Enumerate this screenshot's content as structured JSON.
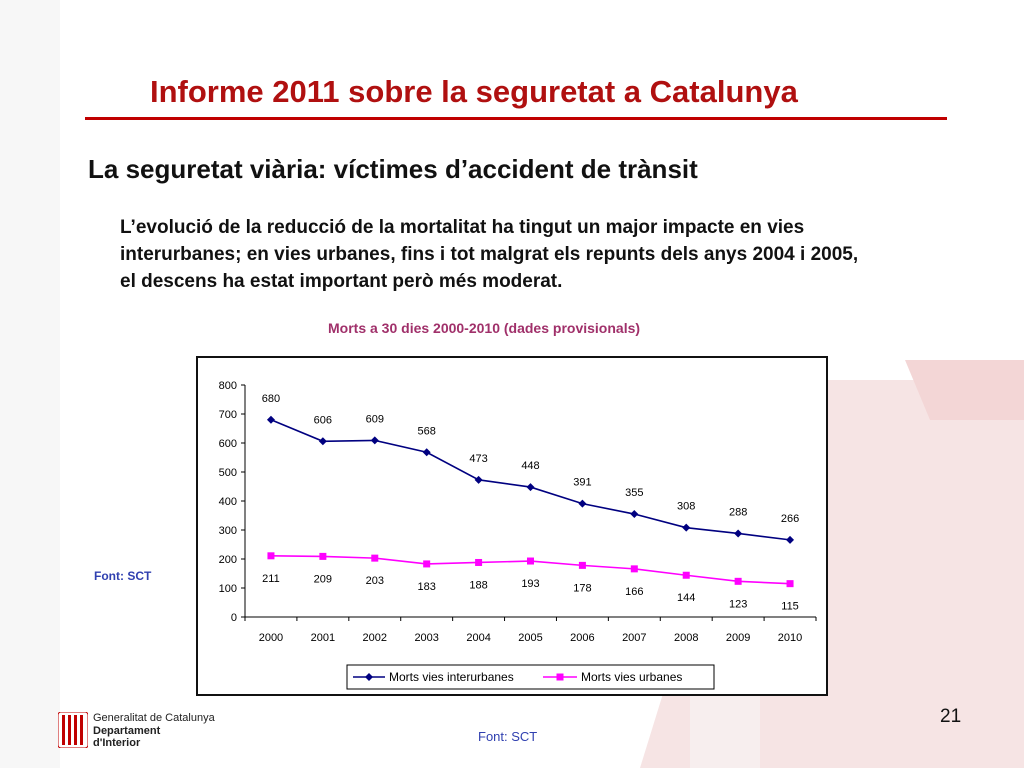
{
  "header": {
    "title": "Informe 2011 sobre la seguretat a Catalunya",
    "subtitle": "La seguretat viària: víctimes d’accident de trànsit",
    "body_text": "L’evolució de la reducció de la mortalitat ha tingut un major impacte en vies interurbanes; en vies urbanes, fins i tot malgrat els repunts dels anys 2004 i 2005, el descens ha estat important però més moderat."
  },
  "source_left": "Font: SCT",
  "source_bottom": "Font: SCT",
  "page_number": "21",
  "logo": {
    "line1": "Generalitat de Catalunya",
    "line2": "Departament",
    "line3": "d'Interior"
  },
  "colors": {
    "title": "#b01010",
    "interurban": "#000080",
    "urban": "#ff00ff"
  },
  "chart_data": {
    "type": "line",
    "title": "Morts a 30 dies 2000-2010 (dades provisionals)",
    "categories": [
      "2000",
      "2001",
      "2002",
      "2003",
      "2004",
      "2005",
      "2006",
      "2007",
      "2008",
      "2009",
      "2010"
    ],
    "series": [
      {
        "name": "Morts vies interurbanes",
        "values": [
          680,
          606,
          609,
          568,
          473,
          448,
          391,
          355,
          308,
          288,
          266
        ],
        "color": "#000080",
        "marker": "diamond"
      },
      {
        "name": "Morts vies urbanes",
        "values": [
          211,
          209,
          203,
          183,
          188,
          193,
          178,
          166,
          144,
          123,
          115
        ],
        "color": "#ff00ff",
        "marker": "square"
      }
    ],
    "ylim": [
      0,
      800
    ],
    "yticks": [
      0,
      100,
      200,
      300,
      400,
      500,
      600,
      700,
      800
    ],
    "grid": false,
    "legend": "bottom"
  }
}
